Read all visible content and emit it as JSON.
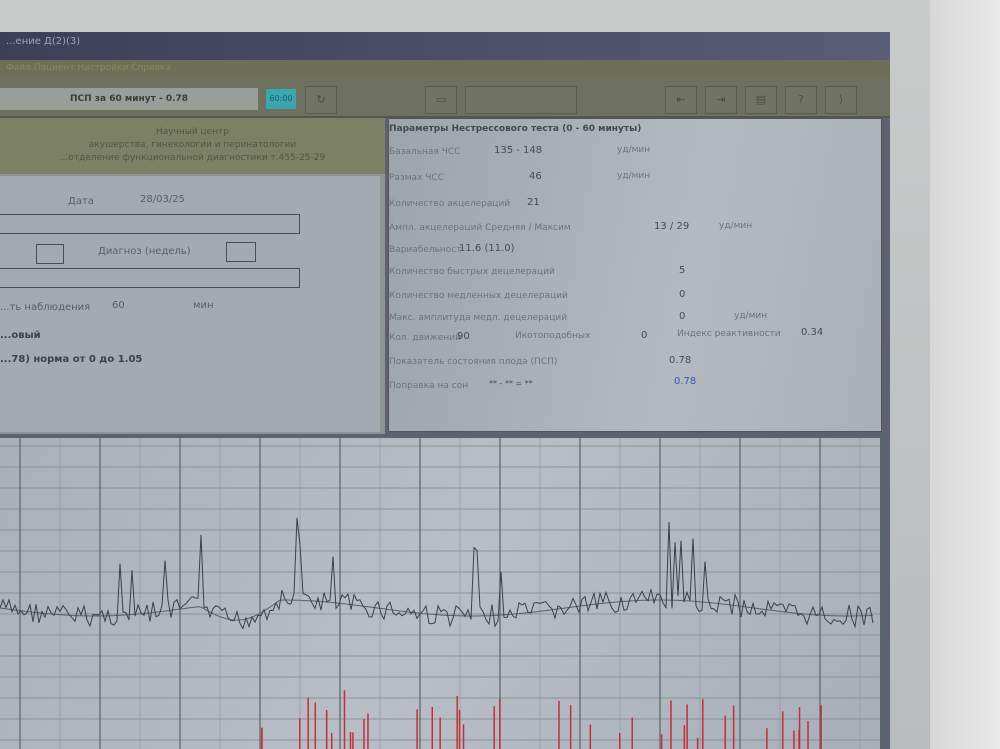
{
  "window": {
    "title": "...ение Д(2)(3)",
    "menu": "Файл  Пациент  Настройки  Справка"
  },
  "toolbar": {
    "psp_summary": "ПСП за 60 минут - 0.78",
    "time": "60:00",
    "buttons": [
      "↻",
      "▭",
      "⇤",
      "⇥",
      "▤",
      "?",
      "⟩"
    ]
  },
  "header": {
    "line1": "Научный центр",
    "line2": "акушерства, гинекологии и перинатологии",
    "line3": "...отделение функциональной диагностики т.455-25-29"
  },
  "form": {
    "date_label": "Дата",
    "date_value": "28/03/25",
    "diagnosis_label": "Диагноз (недель)",
    "duration_label": "...ть наблюдения",
    "duration_value": "60",
    "duration_unit": "мин",
    "result_type": "...овый",
    "result_norm": "...78) норма от 0 до 1.05"
  },
  "params": {
    "title": "Параметры Нестрессового теста (0 - 60 минуты)",
    "rows": [
      {
        "label": "Базальная ЧСС",
        "value": "135 - 148",
        "unit": "уд/мин"
      },
      {
        "label": "Размах ЧСС",
        "value": "46",
        "unit": "уд/мин"
      },
      {
        "label": "Количество акцелераций",
        "value": "21"
      },
      {
        "label": "Ампл. акцелераций  Средняя / Максим",
        "value": "13  / 29",
        "unit": "уд/мин"
      },
      {
        "label": "Вариабельност",
        "value": "11.6 (11.0)"
      },
      {
        "label": "Количество быстрых децелераций",
        "value": "5"
      },
      {
        "label": "Количество медленных децелераций",
        "value": "0"
      },
      {
        "label": "Макс. амплитуда медл. децелераций",
        "value": "0",
        "unit": "уд/мин"
      },
      {
        "label": "Кол. движений",
        "value": "90"
      },
      {
        "label": "Показатель состояния плода (ПСП)",
        "value": "0.78"
      },
      {
        "label": "Поправка на сон",
        "value": "** - ** = **",
        "corrected": "0.78"
      }
    ],
    "hiccup_label": "Икотоподобных",
    "hiccup_value": "0",
    "reactivity_label": "Индекс реактивности",
    "reactivity_value": "0.34"
  },
  "colors": {
    "trace": "#3c4048",
    "toco": "#c0303a",
    "corrected": "#3a56b0",
    "time_btn": "#3aa6b0"
  }
}
